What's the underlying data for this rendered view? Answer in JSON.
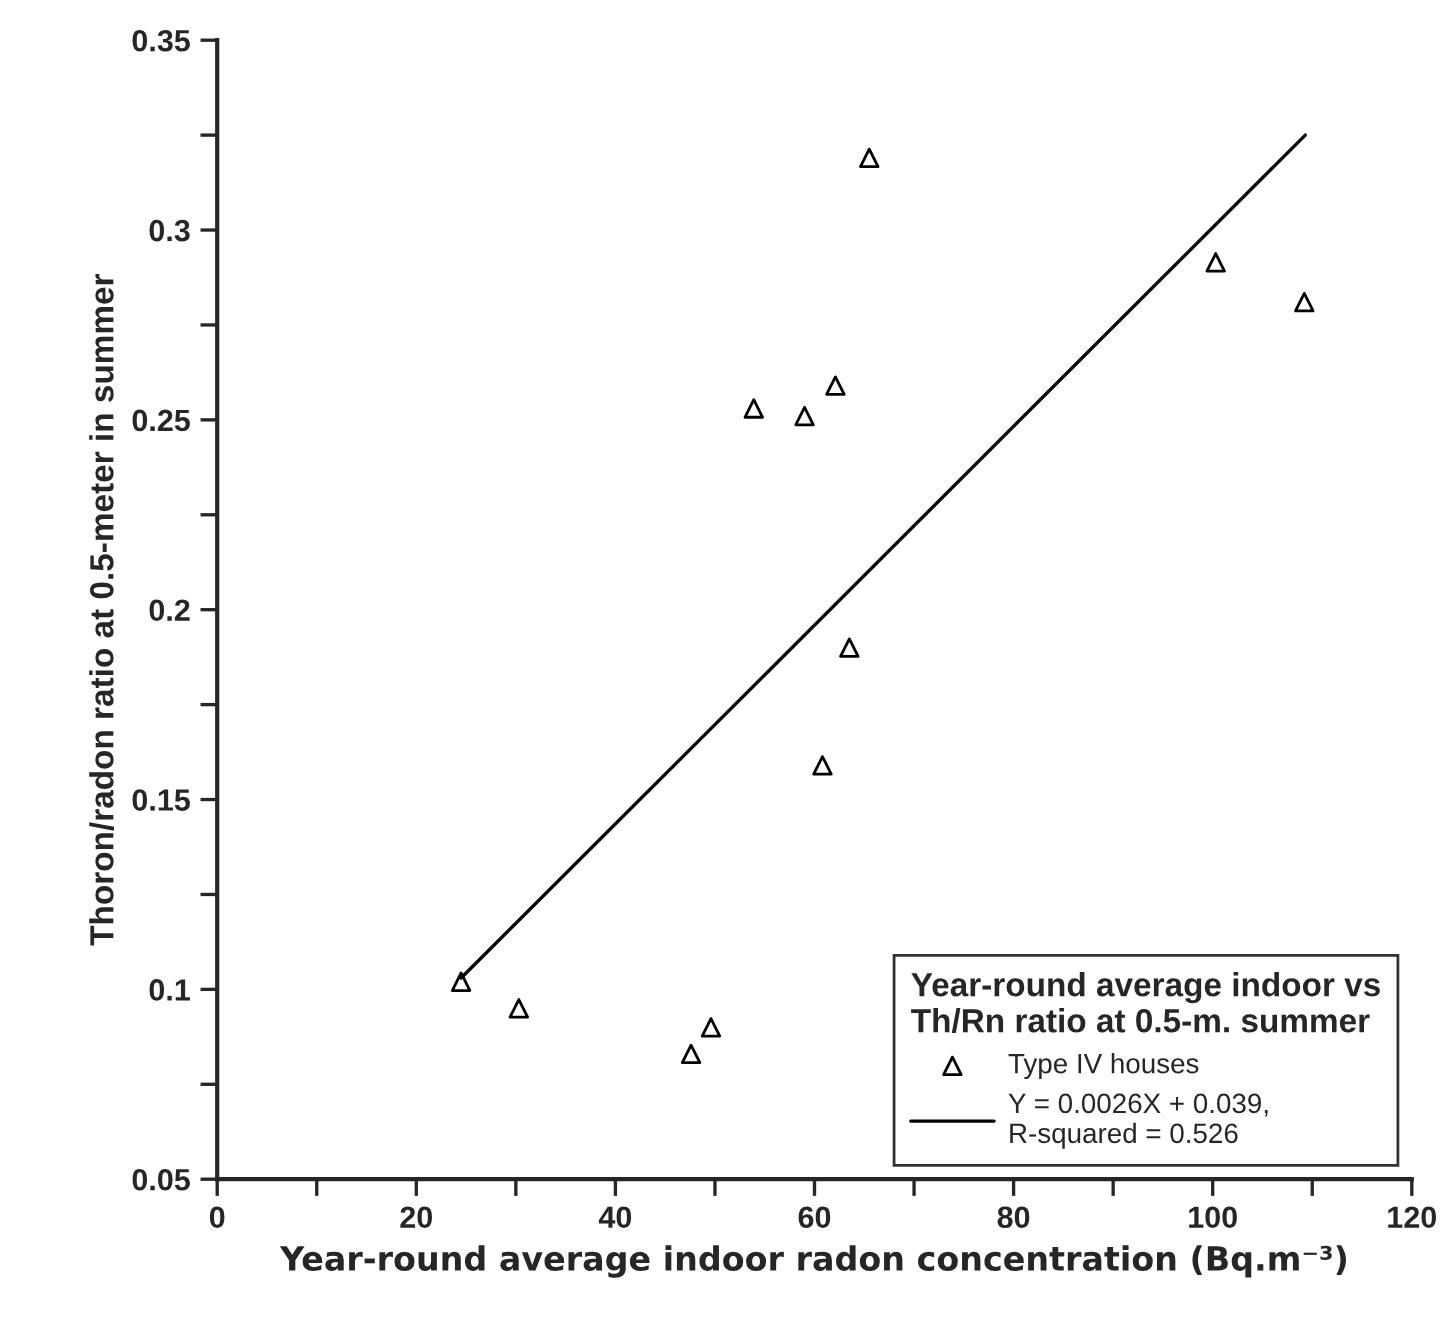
{
  "chart_data": {
    "type": "scatter",
    "xlabel": "Year-round average indoor radon concentration (Bq.m⁻³)",
    "ylabel": "Thoron/radon ratio at 0.5-meter in summer",
    "legend_title": "Year-round average indoor vs\nTh/Rn ratio at 0.5-m. summer",
    "legend": "bottom right",
    "grid": false,
    "xlim": [
      0,
      120
    ],
    "ylim": [
      0.05,
      0.35
    ],
    "xticks": [
      0,
      {
        "value": 10,
        "label": null
      },
      20,
      {
        "value": 30,
        "label": null
      },
      40,
      {
        "value": 50,
        "label": null
      },
      60,
      {
        "value": 70,
        "label": null
      },
      80,
      {
        "value": 90,
        "label": null
      },
      100,
      {
        "value": 110,
        "label": null
      },
      120
    ],
    "yticks": [
      0.05,
      {
        "value": 0.075,
        "label": null
      },
      0.1,
      {
        "value": 0.125,
        "label": null
      },
      0.15,
      {
        "value": 0.175,
        "label": null
      },
      0.2,
      {
        "value": 0.225,
        "label": null
      },
      0.25,
      {
        "value": 0.275,
        "label": null
      },
      0.3,
      {
        "value": 0.325,
        "label": null
      },
      0.35
    ],
    "series": [
      {
        "name": "Type IV houses",
        "marker": "triangle",
        "color": "#000000",
        "x": [
          24.5,
          30.3,
          47.6,
          49.6,
          53.9,
          59.0,
          60.8,
          62.1,
          63.5,
          65.5,
          100.3,
          109.2
        ],
        "values": [
          0.102,
          0.095,
          0.083,
          0.09,
          0.253,
          0.251,
          0.159,
          0.259,
          0.19,
          0.319,
          0.2915,
          0.281
        ]
      },
      {
        "name": "Y = 0.0026X + 0.039,\nR-squared = 0.526",
        "type": "line",
        "marker": "none",
        "line_style": "solid",
        "color": "#000000",
        "x": [
          24.5,
          109.3
        ],
        "values": [
          0.103,
          0.325
        ]
      }
    ]
  }
}
